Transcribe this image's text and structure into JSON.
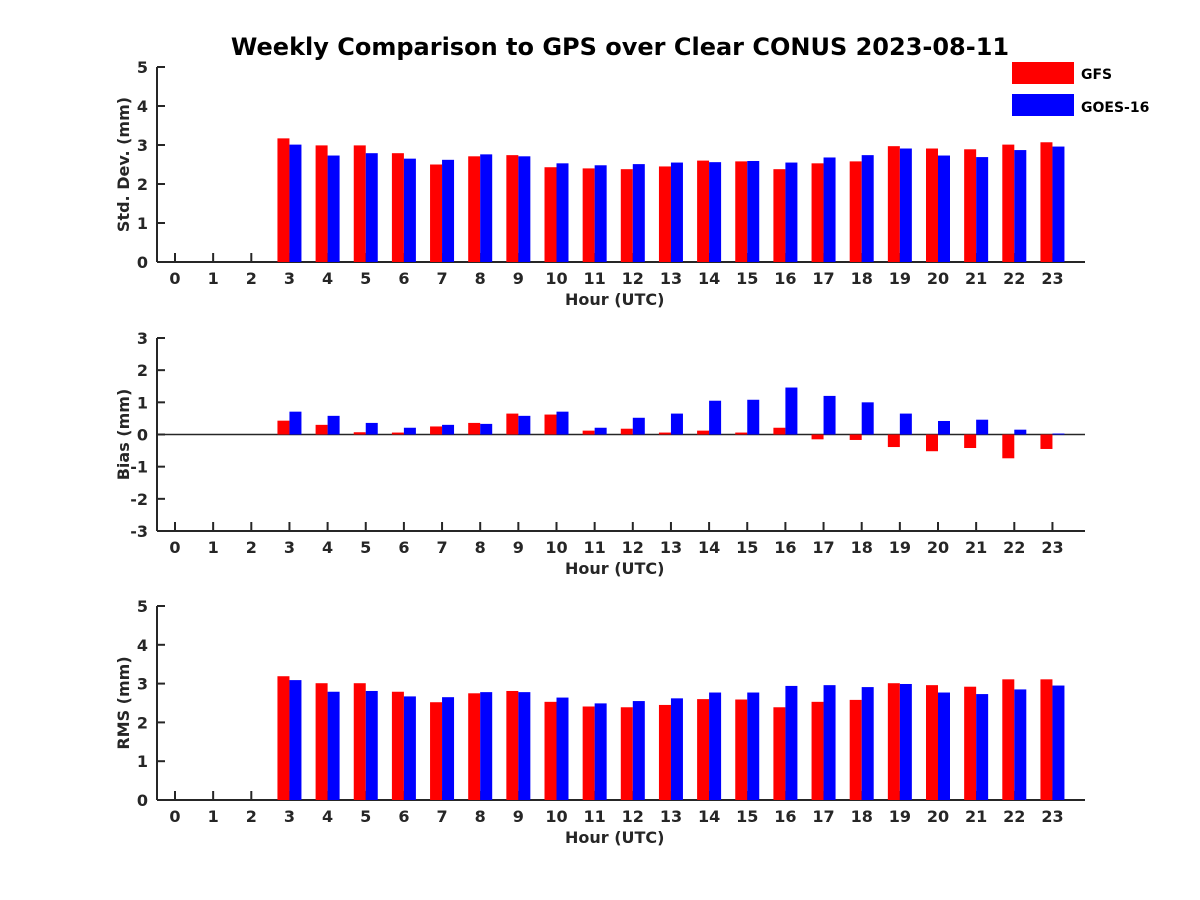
{
  "figure_title": "Weekly Comparison to GPS over Clear CONUS 2023-08-11",
  "legend": [
    {
      "name": "GFS",
      "color": "#ff0000"
    },
    {
      "name": "GOES-16",
      "color": "#0000ff"
    }
  ],
  "chart_data": [
    {
      "type": "bar",
      "xlabel": "Hour (UTC)",
      "ylabel": "Std. Dev. (mm)",
      "ylim": [
        0,
        5
      ],
      "yticks": [
        0,
        1,
        2,
        3,
        4,
        5
      ],
      "categories": [
        0,
        1,
        2,
        3,
        4,
        5,
        6,
        7,
        8,
        9,
        10,
        11,
        12,
        13,
        14,
        15,
        16,
        17,
        18,
        19,
        20,
        21,
        22,
        23
      ],
      "series": [
        {
          "name": "GFS",
          "color": "#ff0000",
          "values": [
            null,
            null,
            null,
            3.17,
            2.99,
            2.99,
            2.79,
            2.5,
            2.71,
            2.74,
            2.43,
            2.4,
            2.38,
            2.45,
            2.6,
            2.58,
            2.38,
            2.53,
            2.58,
            2.97,
            2.91,
            2.89,
            3.01,
            3.07
          ]
        },
        {
          "name": "GOES-16",
          "color": "#0000ff",
          "values": [
            null,
            null,
            null,
            3.01,
            2.73,
            2.79,
            2.65,
            2.62,
            2.76,
            2.71,
            2.53,
            2.48,
            2.51,
            2.55,
            2.56,
            2.59,
            2.55,
            2.68,
            2.74,
            2.91,
            2.73,
            2.69,
            2.87,
            2.96
          ]
        }
      ]
    },
    {
      "type": "bar",
      "xlabel": "Hour (UTC)",
      "ylabel": "Bias (mm)",
      "ylim": [
        -3,
        3
      ],
      "yticks": [
        -3,
        -2,
        -1,
        0,
        1,
        2,
        3
      ],
      "categories": [
        0,
        1,
        2,
        3,
        4,
        5,
        6,
        7,
        8,
        9,
        10,
        11,
        12,
        13,
        14,
        15,
        16,
        17,
        18,
        19,
        20,
        21,
        22,
        23
      ],
      "series": [
        {
          "name": "GFS",
          "color": "#ff0000",
          "values": [
            null,
            null,
            null,
            0.43,
            0.3,
            0.07,
            0.06,
            0.25,
            0.36,
            0.65,
            0.62,
            0.12,
            0.18,
            0.06,
            0.12,
            0.06,
            0.21,
            -0.15,
            -0.17,
            -0.39,
            -0.52,
            -0.42,
            -0.74,
            -0.45
          ]
        },
        {
          "name": "GOES-16",
          "color": "#0000ff",
          "values": [
            null,
            null,
            null,
            0.71,
            0.58,
            0.36,
            0.21,
            0.3,
            0.33,
            0.58,
            0.71,
            0.21,
            0.52,
            0.65,
            1.05,
            1.08,
            1.46,
            1.2,
            1.0,
            0.65,
            0.42,
            0.46,
            0.15,
            0.03
          ]
        }
      ]
    },
    {
      "type": "bar",
      "xlabel": "Hour (UTC)",
      "ylabel": "RMS (mm)",
      "ylim": [
        0,
        5
      ],
      "yticks": [
        0,
        1,
        2,
        3,
        4,
        5
      ],
      "categories": [
        0,
        1,
        2,
        3,
        4,
        5,
        6,
        7,
        8,
        9,
        10,
        11,
        12,
        13,
        14,
        15,
        16,
        17,
        18,
        19,
        20,
        21,
        22,
        23
      ],
      "series": [
        {
          "name": "GFS",
          "color": "#ff0000",
          "values": [
            null,
            null,
            null,
            3.19,
            3.01,
            3.01,
            2.79,
            2.52,
            2.75,
            2.81,
            2.53,
            2.41,
            2.39,
            2.45,
            2.6,
            2.59,
            2.39,
            2.53,
            2.58,
            3.01,
            2.96,
            2.92,
            3.11,
            3.11
          ]
        },
        {
          "name": "GOES-16",
          "color": "#0000ff",
          "values": [
            null,
            null,
            null,
            3.09,
            2.79,
            2.81,
            2.67,
            2.65,
            2.78,
            2.78,
            2.64,
            2.49,
            2.55,
            2.62,
            2.77,
            2.77,
            2.94,
            2.96,
            2.91,
            2.99,
            2.77,
            2.73,
            2.85,
            2.95
          ]
        }
      ]
    }
  ]
}
